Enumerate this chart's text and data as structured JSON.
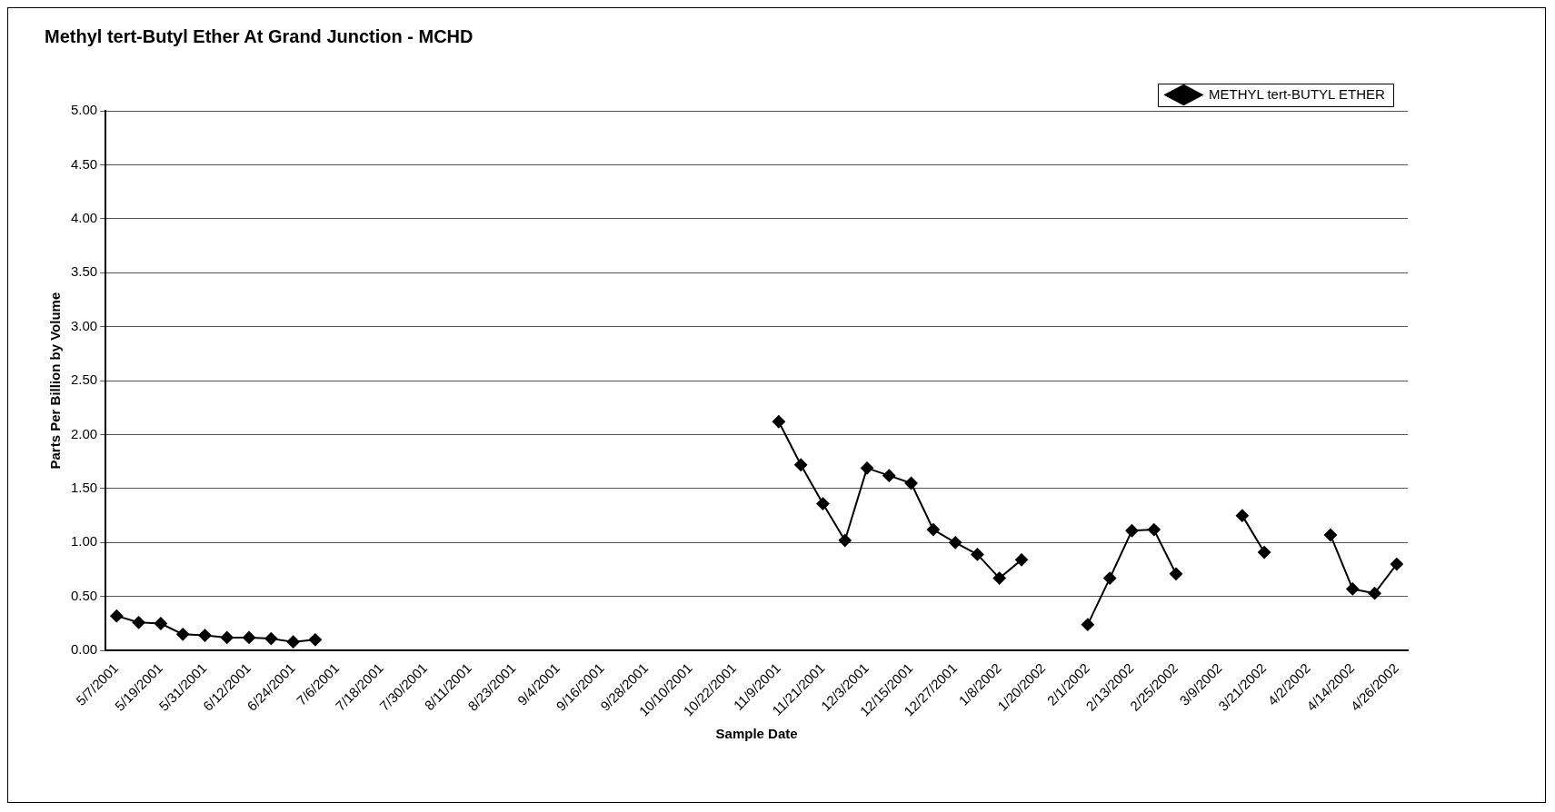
{
  "chart_data": {
    "type": "line",
    "title": "Methyl tert-Butyl Ether At Grand Junction - MCHD",
    "xlabel": "Sample Date",
    "ylabel": "Parts Per Billion by Volume",
    "categories": [
      "5/7/2001",
      null,
      "5/19/2001",
      null,
      "5/31/2001",
      null,
      "6/12/2001",
      null,
      "6/24/2001",
      null,
      "7/6/2001",
      null,
      "7/18/2001",
      null,
      "7/30/2001",
      null,
      "8/11/2001",
      null,
      "8/23/2001",
      null,
      "9/4/2001",
      null,
      "9/16/2001",
      null,
      "9/28/2001",
      null,
      "10/10/2001",
      null,
      "10/22/2001",
      null,
      "11/9/2001",
      null,
      "11/21/2001",
      null,
      "12/3/2001",
      null,
      "12/15/2001",
      null,
      "12/27/2001",
      null,
      "1/8/2002",
      null,
      "1/20/2002",
      null,
      "2/1/2002",
      null,
      "2/13/2002",
      null,
      "2/25/2002",
      null,
      "3/9/2002",
      null,
      "3/21/2002",
      null,
      "4/2/2002",
      null,
      "4/14/2002",
      null,
      "4/26/2002"
    ],
    "series": [
      {
        "name": "METHYL tert-BUTYL ETHER",
        "color": "#000000",
        "values": [
          0.32,
          0.26,
          0.25,
          0.15,
          0.14,
          0.12,
          0.12,
          0.11,
          0.08,
          0.1,
          null,
          null,
          null,
          null,
          null,
          null,
          null,
          null,
          null,
          null,
          null,
          null,
          null,
          null,
          null,
          null,
          null,
          null,
          null,
          null,
          2.12,
          1.72,
          1.36,
          1.02,
          1.69,
          1.62,
          1.55,
          1.12,
          1.0,
          0.89,
          0.67,
          0.84,
          null,
          null,
          0.24,
          0.67,
          1.11,
          1.12,
          0.71,
          null,
          null,
          1.25,
          0.91,
          null,
          null,
          1.07,
          0.57,
          0.53,
          0.8
        ]
      }
    ],
    "ylim": [
      0,
      5
    ],
    "yticks": [
      {
        "value": 0,
        "label": "0.00"
      },
      {
        "value": 0.5,
        "label": "0.50"
      },
      {
        "value": 1,
        "label": "1.00"
      },
      {
        "value": 1.5,
        "label": "1.50"
      },
      {
        "value": 2,
        "label": "2.00"
      },
      {
        "value": 2.5,
        "label": "2.50"
      },
      {
        "value": 3,
        "label": "3.00"
      },
      {
        "value": 3.5,
        "label": "3.50"
      },
      {
        "value": 4,
        "label": "4.00"
      },
      {
        "value": 4.5,
        "label": "4.50"
      },
      {
        "value": 5,
        "label": "5.00"
      }
    ],
    "grid": "y",
    "legend": "top right",
    "marker": "diamond",
    "line_style": "solid"
  }
}
